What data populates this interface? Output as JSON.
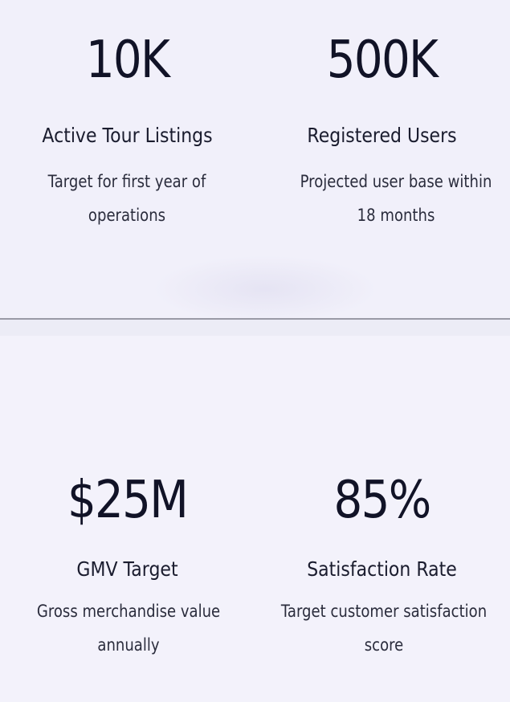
{
  "stats_top": [
    {
      "value": "10K",
      "label": "Active Tour Listings",
      "description": "Target for first year of operations"
    },
    {
      "value": "500K",
      "label": "Registered Users",
      "description": "Projected user base within 18 months"
    }
  ],
  "stats_bottom": [
    {
      "value": "$25M",
      "label": "GMV Target",
      "description": "Gross merchandise value annually"
    },
    {
      "value": "85%",
      "label": "Satisfaction Rate",
      "description": "Target customer satisfaction score"
    }
  ]
}
